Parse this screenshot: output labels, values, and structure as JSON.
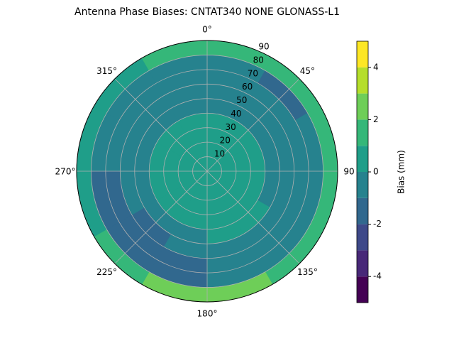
{
  "chart_data": {
    "type": "polar-contour",
    "title": "Antenna Phase Biases: CNTAT340        NONE GLONASS-L1",
    "theta_edges": [
      0,
      30,
      60,
      90,
      120,
      150,
      180,
      210,
      240,
      270,
      300,
      330,
      360
    ],
    "r_edges": [
      0,
      10,
      20,
      30,
      40,
      50,
      60,
      70,
      80,
      90
    ],
    "values": [
      [
        0.5,
        0.5,
        0.5,
        0.5,
        0.5,
        0.5,
        0.5,
        0.5,
        0.5,
        0.5,
        0.5,
        0.5
      ],
      [
        0.5,
        0.5,
        0.5,
        0.5,
        0.5,
        0.5,
        0.5,
        0.5,
        0.5,
        0.5,
        0.5,
        0.5
      ],
      [
        0.5,
        0.5,
        0.5,
        0.5,
        0.5,
        0.5,
        0.5,
        0.5,
        0.5,
        0.5,
        0.5,
        0.5
      ],
      [
        0.3,
        0.3,
        0.3,
        0.3,
        0.4,
        0.4,
        0.4,
        0.4,
        0.4,
        0.4,
        0.3,
        0.3
      ],
      [
        -0.5,
        -0.5,
        -0.5,
        -0.5,
        0.3,
        0.3,
        -0.5,
        -0.5,
        -0.5,
        -0.5,
        -0.5,
        -0.5
      ],
      [
        -0.5,
        -0.5,
        -0.5,
        -0.5,
        -0.5,
        -0.5,
        -0.5,
        -1.2,
        -0.5,
        -0.5,
        -0.5,
        -0.5
      ],
      [
        -0.5,
        -0.5,
        -0.5,
        -0.5,
        -0.5,
        -0.5,
        -1.5,
        -1.5,
        -1.5,
        -0.5,
        -0.5,
        -0.5
      ],
      [
        -0.5,
        -1.5,
        -0.5,
        -0.5,
        -0.5,
        -0.5,
        -1.5,
        -1.5,
        -1.5,
        -0.5,
        -0.5,
        -0.5
      ],
      [
        1.5,
        1.5,
        1.5,
        1.5,
        1.5,
        2.5,
        2.5,
        1.5,
        0.5,
        0.5,
        0.5,
        1.5
      ]
    ],
    "rlim": [
      0,
      90
    ],
    "rticks": [
      10,
      20,
      30,
      40,
      50,
      60,
      70,
      80,
      90
    ],
    "theta_ticks": [
      {
        "value": 0,
        "label": "0°"
      },
      {
        "value": 45,
        "label": "45°"
      },
      {
        "value": 90,
        "label": "90"
      },
      {
        "value": 135,
        "label": "135°"
      },
      {
        "value": 180,
        "label": "180°"
      },
      {
        "value": 225,
        "label": "225°"
      },
      {
        "value": 270,
        "label": "270°"
      },
      {
        "value": 315,
        "label": "315°"
      }
    ],
    "grid": true,
    "levels": [
      -5,
      -4,
      -3,
      -2,
      -1,
      0,
      1,
      2,
      3,
      4,
      5
    ],
    "colors": [
      "#440154",
      "#482878",
      "#3e4989",
      "#31688e",
      "#26828e",
      "#1f9e89",
      "#35b779",
      "#6ece58",
      "#b5de2b",
      "#fde725"
    ],
    "colorbar_ticks": [
      -4,
      -2,
      0,
      2,
      4
    ],
    "colorbar_label": "Bias (mm)"
  }
}
